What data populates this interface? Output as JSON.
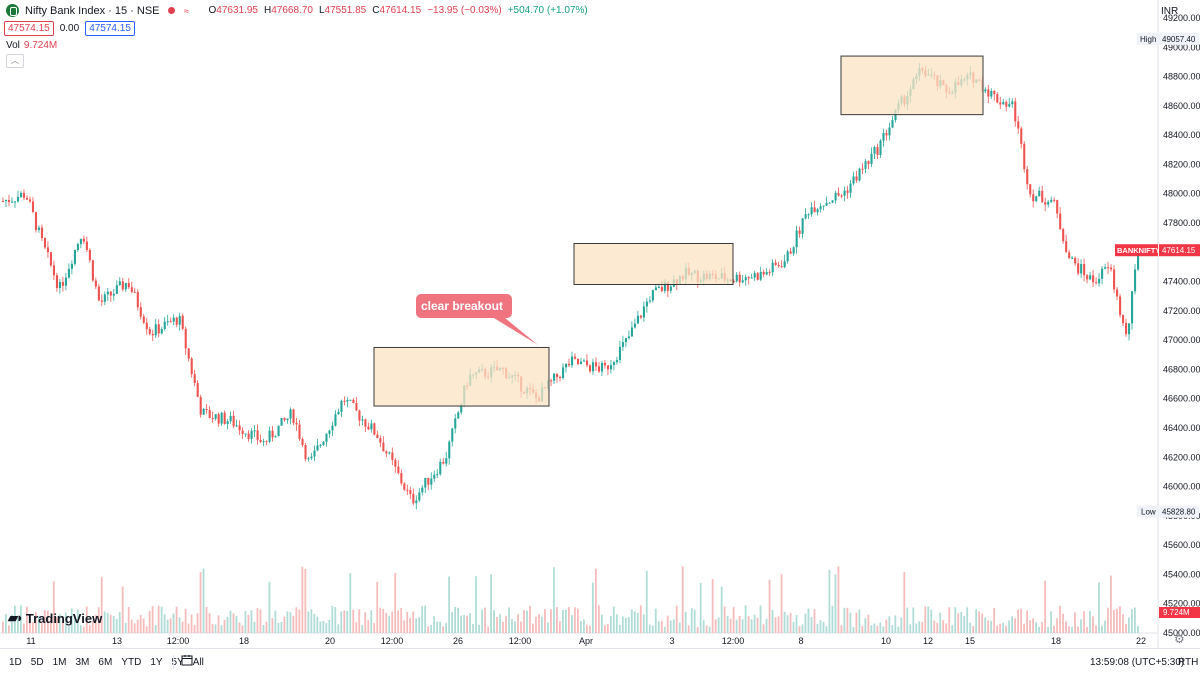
{
  "legend": {
    "title": "Nifty Bank Index · 15 · NSE",
    "ohlc": [
      {
        "key": "O",
        "value": "47631.95"
      },
      {
        "key": "H",
        "value": "47668.70"
      },
      {
        "key": "L",
        "value": "47551.85"
      },
      {
        "key": "C",
        "value": "47614.15"
      }
    ],
    "change": "−13.95 (−0.03%)",
    "day_change": "+504.70 (+1.07%)",
    "sell_price": "47574.15",
    "spread": "0.00",
    "buy_price": "47574.15",
    "volume_label": "Vol",
    "volume_value": "9.724M"
  },
  "currency": "INR",
  "price_axis": {
    "ticks": [
      "49200.00",
      "49000.00",
      "48800.00",
      "48600.00",
      "48400.00",
      "48200.00",
      "48000.00",
      "47800.00",
      "47600.00",
      "47400.00",
      "47200.00",
      "47000.00",
      "46800.00",
      "46600.00",
      "46400.00",
      "46200.00",
      "46000.00",
      "45800.00",
      "45600.00",
      "45400.00",
      "45200.00",
      "45000.00"
    ],
    "high_label": "High",
    "high_value": "49057.40",
    "low_label": "Low",
    "low_value": "45828.80",
    "symbol_tag": "BANKNIFTY",
    "last_price": "47614.15",
    "volume_tag": "9.724M"
  },
  "time_axis": {
    "labels": [
      "11",
      "13",
      "12:00",
      "18",
      "20",
      "12:00",
      "26",
      "12:00",
      "Apr",
      "3",
      "12:00",
      "8",
      "10",
      "12",
      "15",
      "18",
      "22"
    ]
  },
  "annotation": {
    "callout": "clear breakout"
  },
  "logo": "TradingView",
  "bottom_bar": {
    "ranges": [
      "1D",
      "5D",
      "1M",
      "3M",
      "6M",
      "YTD",
      "1Y",
      "5Y",
      "All"
    ],
    "clock": "13:59:08 (UTC+5:30)",
    "session": "RTH"
  },
  "colors": {
    "up": "#26a69a",
    "down": "#ef5350",
    "box_fill": "#fbe3c4",
    "box_stroke": "#3a3a3a",
    "callout": "#f07480",
    "tag_red": "#f23645"
  },
  "chart_data": {
    "type": "candlestick",
    "y_axis": {
      "min": 45000,
      "max": 49200,
      "gridlines": false
    },
    "high": 49057.4,
    "low": 45828.8,
    "last": 47614.15,
    "path_anchors": [
      [
        0,
        47950
      ],
      [
        0.02,
        48000
      ],
      [
        0.035,
        47650
      ],
      [
        0.05,
        47350
      ],
      [
        0.07,
        47750
      ],
      [
        0.085,
        47250
      ],
      [
        0.11,
        47400
      ],
      [
        0.13,
        47050
      ],
      [
        0.155,
        47150
      ],
      [
        0.175,
        46500
      ],
      [
        0.2,
        46450
      ],
      [
        0.23,
        46300
      ],
      [
        0.255,
        46500
      ],
      [
        0.27,
        46150
      ],
      [
        0.3,
        46600
      ],
      [
        0.33,
        46350
      ],
      [
        0.36,
        45900
      ],
      [
        0.39,
        46200
      ],
      [
        0.41,
        46750
      ],
      [
        0.44,
        46800
      ],
      [
        0.47,
        46600
      ],
      [
        0.5,
        46850
      ],
      [
        0.53,
        46800
      ],
      [
        0.55,
        47000
      ],
      [
        0.57,
        47300
      ],
      [
        0.6,
        47450
      ],
      [
        0.64,
        47420
      ],
      [
        0.67,
        47450
      ],
      [
        0.69,
        47550
      ],
      [
        0.71,
        47900
      ],
      [
        0.74,
        48000
      ],
      [
        0.77,
        48300
      ],
      [
        0.79,
        48600
      ],
      [
        0.81,
        48850
      ],
      [
        0.83,
        48700
      ],
      [
        0.855,
        48800
      ],
      [
        0.875,
        48650
      ],
      [
        0.89,
        48600
      ],
      [
        0.905,
        48000
      ],
      [
        0.925,
        47950
      ],
      [
        0.94,
        47550
      ],
      [
        0.96,
        47400
      ],
      [
        0.975,
        47500
      ],
      [
        0.99,
        47000
      ],
      [
        1.0,
        47614
      ]
    ],
    "highlight_ranges": [
      {
        "from_price": 46550,
        "to_price": 46950
      },
      {
        "from_price": 47380,
        "to_price": 47660
      },
      {
        "from_price": 48540,
        "to_price": 48940
      }
    ]
  }
}
